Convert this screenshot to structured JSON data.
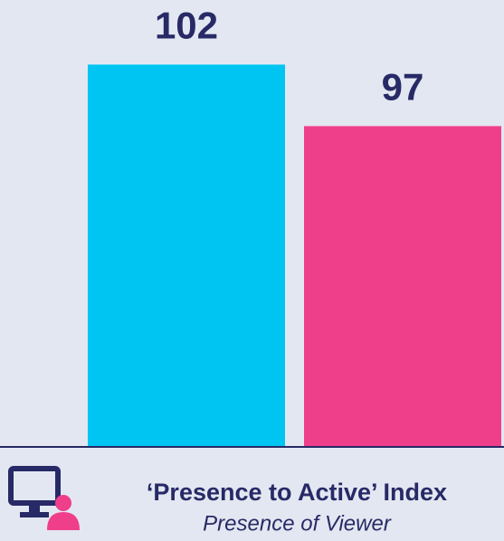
{
  "chart_data": {
    "type": "bar",
    "title": "‘Presence to Active’ Index",
    "subtitle": "Presence of Viewer",
    "categories": [
      null,
      null
    ],
    "values": [
      102,
      97
    ],
    "colors": [
      "#00c5f2",
      "#ef3f8b"
    ],
    "ylim": [
      71,
      107
    ]
  }
}
